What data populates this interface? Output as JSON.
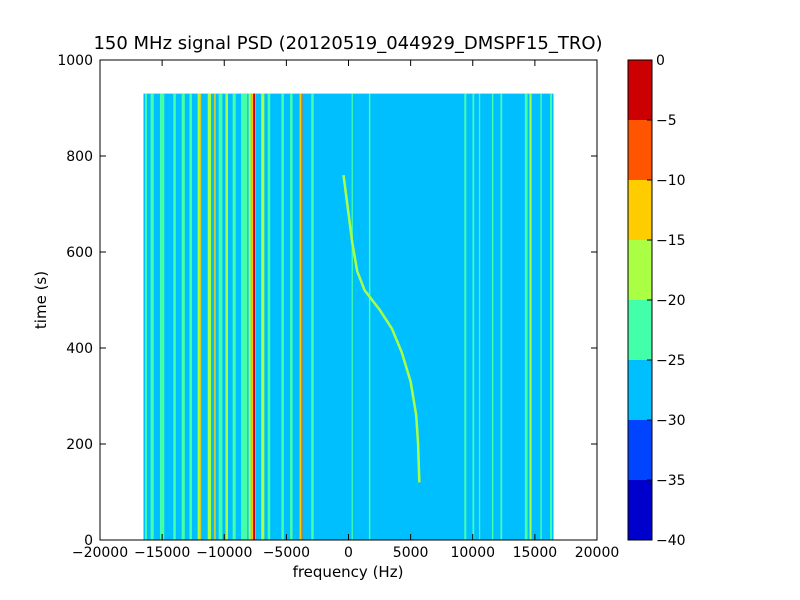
{
  "chart_data": {
    "type": "heatmap",
    "title": "150 MHz signal PSD (20120519_044929_DMSPF15_TRO)",
    "xlabel": "frequency (Hz)",
    "ylabel": "time (s)",
    "xlim": [
      -20000,
      20000
    ],
    "ylim": [
      0,
      1000
    ],
    "x_ticks": [
      -20000,
      -15000,
      -10000,
      -5000,
      0,
      5000,
      10000,
      15000,
      20000
    ],
    "y_ticks": [
      0,
      200,
      400,
      600,
      800,
      1000
    ],
    "data_extent": {
      "freq": [
        -16500,
        16500
      ],
      "time": [
        0,
        930
      ]
    },
    "background_level": -27.5,
    "colorbar": {
      "levels": [
        -40,
        -35,
        -30,
        -25,
        -20,
        -15,
        -10,
        -5,
        0
      ],
      "tick_labels": [
        "−40",
        "−35",
        "−30",
        "−25",
        "−20",
        "−15",
        "−10",
        "−5",
        "0"
      ],
      "colors": [
        "#0000cc",
        "#0044ff",
        "#00bfff",
        "#44ffaa",
        "#aaff44",
        "#ffcc00",
        "#ff5500",
        "#cc0000"
      ]
    },
    "stripes": [
      {
        "freq": -16300,
        "width": 150,
        "level": -22.5
      },
      {
        "freq": -15800,
        "width": 250,
        "level": -22.5
      },
      {
        "freq": -15000,
        "width": 350,
        "level": -22.5
      },
      {
        "freq": -14000,
        "width": 200,
        "level": -22.5
      },
      {
        "freq": -13300,
        "width": 250,
        "level": -22.5
      },
      {
        "freq": -12700,
        "width": 200,
        "level": -22.5
      },
      {
        "freq": -12050,
        "width": 180,
        "level": -17.5
      },
      {
        "freq": -11900,
        "width": 80,
        "level": -12.5
      },
      {
        "freq": -11200,
        "width": 260,
        "level": -17.5
      },
      {
        "freq": -10750,
        "width": 120,
        "level": -12.5
      },
      {
        "freq": -10300,
        "width": 300,
        "level": -22.5
      },
      {
        "freq": -9800,
        "width": 200,
        "level": -17.5
      },
      {
        "freq": -9200,
        "width": 250,
        "level": -22.5
      },
      {
        "freq": -8400,
        "width": 500,
        "level": -22.5
      },
      {
        "freq": -7950,
        "width": 180,
        "level": -17.5
      },
      {
        "freq": -7650,
        "width": 350,
        "level": -12.5
      },
      {
        "freq": -7600,
        "width": 160,
        "level": -2.5
      },
      {
        "freq": -6900,
        "width": 250,
        "level": -17.5
      },
      {
        "freq": -6400,
        "width": 200,
        "level": -22.5
      },
      {
        "freq": -5300,
        "width": 200,
        "level": -22.5
      },
      {
        "freq": -4600,
        "width": 200,
        "level": -22.5
      },
      {
        "freq": -3850,
        "width": 180,
        "level": -12.5
      },
      {
        "freq": -3750,
        "width": 80,
        "level": -7.5
      },
      {
        "freq": -2900,
        "width": 200,
        "level": -22.5
      },
      {
        "freq": 300,
        "width": 100,
        "level": -22.5
      },
      {
        "freq": 1700,
        "width": 120,
        "level": -22.5
      },
      {
        "freq": 9400,
        "width": 160,
        "level": -22.5
      },
      {
        "freq": 10050,
        "width": 140,
        "level": -22.5
      },
      {
        "freq": 10550,
        "width": 100,
        "level": -22.5
      },
      {
        "freq": 11600,
        "width": 120,
        "level": -22.5
      },
      {
        "freq": 12300,
        "width": 140,
        "level": -22.5
      },
      {
        "freq": 14300,
        "width": 220,
        "level": -22.5
      },
      {
        "freq": 14650,
        "width": 160,
        "level": -17.5
      },
      {
        "freq": 15500,
        "width": 120,
        "level": -22.5
      },
      {
        "freq": 16300,
        "width": 150,
        "level": -22.5
      }
    ],
    "doppler_trace": {
      "level": -17.5,
      "points": [
        [
          5700,
          120
        ],
        [
          5600,
          200
        ],
        [
          5450,
          260
        ],
        [
          5000,
          330
        ],
        [
          4300,
          390
        ],
        [
          3500,
          440
        ],
        [
          2500,
          480
        ],
        [
          1300,
          520
        ],
        [
          700,
          560
        ],
        [
          300,
          620
        ],
        [
          0,
          680
        ],
        [
          -400,
          760
        ]
      ]
    }
  }
}
